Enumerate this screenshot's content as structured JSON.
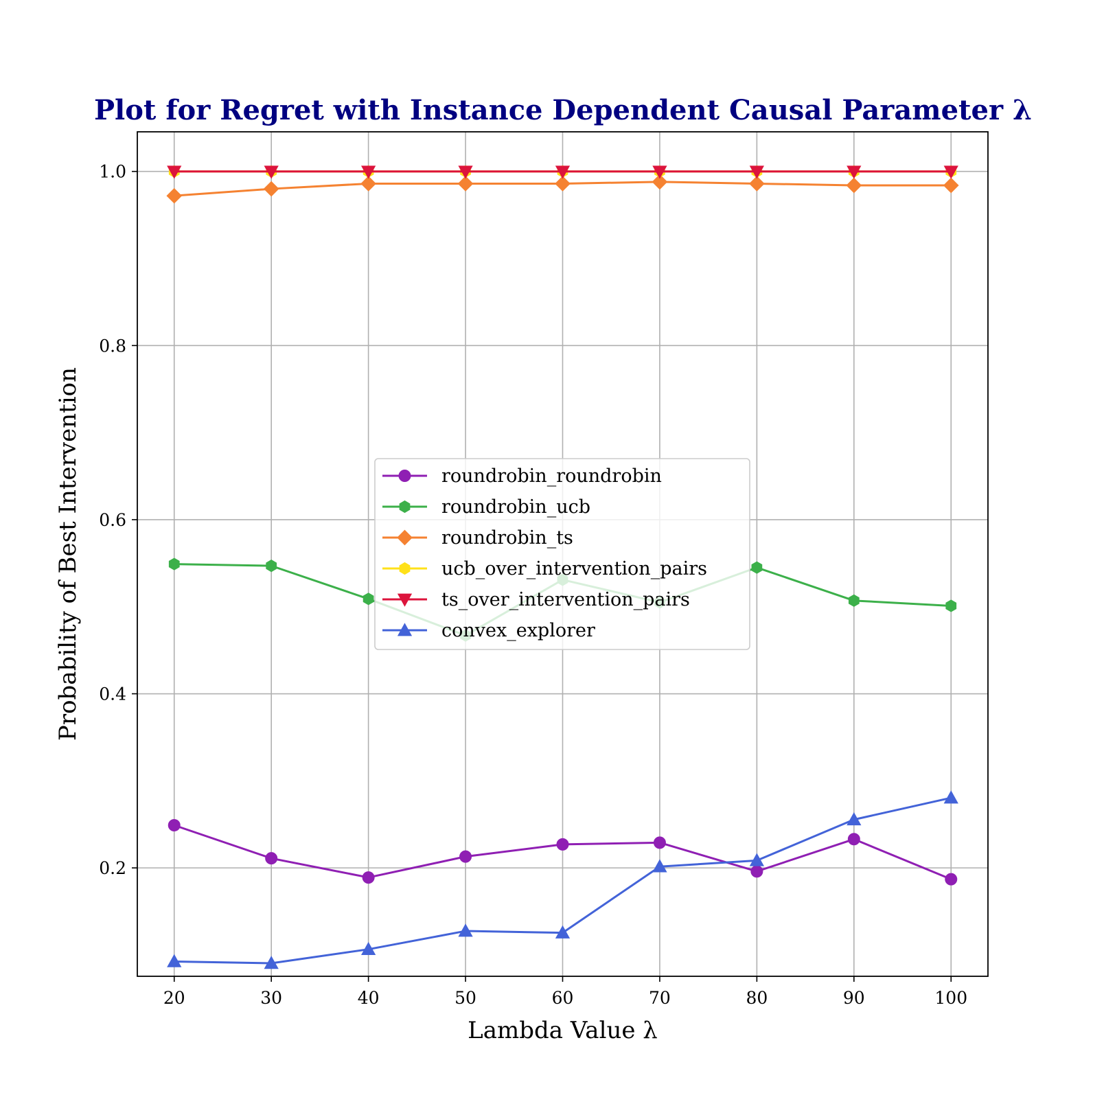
{
  "chart_data": {
    "type": "line",
    "title": "Plot for Regret with Instance Dependent Causal Parameter λ",
    "xlabel": "Lambda Value λ",
    "ylabel": "Probability of Best Intervention",
    "x": [
      20,
      30,
      40,
      50,
      60,
      70,
      80,
      90,
      100
    ],
    "x_tick_labels": [
      "20",
      "30",
      "40",
      "50",
      "60",
      "70",
      "80",
      "90",
      "100"
    ],
    "y_ticks": [
      0.2,
      0.4,
      0.6,
      0.8,
      1.0
    ],
    "y_tick_labels": [
      "0.2",
      "0.4",
      "0.6",
      "0.8",
      "1.0"
    ],
    "xlim": [
      16.2,
      103.8
    ],
    "ylim": [
      0.0755,
      1.0455
    ],
    "grid": true,
    "legend_position": "center",
    "series": [
      {
        "name": "roundrobin_roundrobin",
        "color": "#8f1fb3",
        "marker": "circle",
        "values": [
          0.249,
          0.211,
          0.189,
          0.213,
          0.227,
          0.229,
          0.196,
          0.233,
          0.187
        ]
      },
      {
        "name": "roundrobin_ucb",
        "color": "#3cb04a",
        "marker": "hexagon",
        "values": [
          0.549,
          0.547,
          0.509,
          0.467,
          0.531,
          0.505,
          0.545,
          0.507,
          0.501
        ]
      },
      {
        "name": "roundrobin_ts",
        "color": "#f58231",
        "marker": "diamond",
        "values": [
          0.972,
          0.98,
          0.986,
          0.986,
          0.986,
          0.988,
          0.986,
          0.984,
          0.984
        ]
      },
      {
        "name": "ucb_over_intervention_pairs",
        "color": "#ffe119",
        "marker": "hexagon",
        "values": [
          1.0,
          1.0,
          1.0,
          1.0,
          1.0,
          1.0,
          1.0,
          1.0,
          1.0
        ]
      },
      {
        "name": "ts_over_intervention_pairs",
        "color": "#dc143c",
        "marker": "triangle-down",
        "values": [
          1.0,
          1.0,
          1.0,
          1.0,
          1.0,
          1.0,
          1.0,
          1.0,
          1.0
        ]
      },
      {
        "name": "convex_explorer",
        "color": "#4363d8",
        "marker": "triangle-up",
        "values": [
          0.0925,
          0.0905,
          0.1065,
          0.1275,
          0.1255,
          0.2015,
          0.2085,
          0.2555,
          0.2805
        ]
      }
    ]
  }
}
